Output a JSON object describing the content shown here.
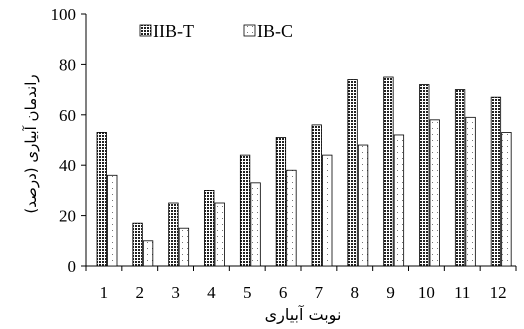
{
  "chart_data": {
    "type": "bar",
    "categories": [
      "1",
      "2",
      "3",
      "4",
      "5",
      "6",
      "7",
      "8",
      "9",
      "10",
      "11",
      "12"
    ],
    "series": [
      {
        "name": "IIB-T",
        "values": [
          53,
          17,
          25,
          30,
          44,
          51,
          56,
          74,
          75,
          72,
          70,
          67
        ],
        "pattern": "checker",
        "color": "#000000"
      },
      {
        "name": "IB-C",
        "values": [
          36,
          10,
          15,
          25,
          33,
          38,
          44,
          48,
          52,
          58,
          59,
          53
        ],
        "pattern": "dots",
        "color": "#000000"
      }
    ],
    "xlabel": "نوبت آبیاری",
    "ylabel": "راندمان آبیاری (درصد)",
    "ylim": [
      0,
      100
    ],
    "yticks": [
      0,
      20,
      40,
      60,
      80,
      100
    ],
    "grid": false,
    "legend_position": "top-left"
  }
}
